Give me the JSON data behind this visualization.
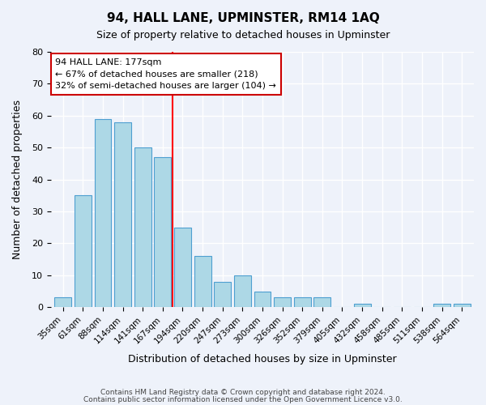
{
  "title": "94, HALL LANE, UPMINSTER, RM14 1AQ",
  "subtitle": "Size of property relative to detached houses in Upminster",
  "xlabel": "Distribution of detached houses by size in Upminster",
  "ylabel": "Number of detached properties",
  "bar_labels": [
    "35sqm",
    "61sqm",
    "88sqm",
    "114sqm",
    "141sqm",
    "167sqm",
    "194sqm",
    "220sqm",
    "247sqm",
    "273sqm",
    "300sqm",
    "326sqm",
    "352sqm",
    "379sqm",
    "405sqm",
    "432sqm",
    "458sqm",
    "485sqm",
    "511sqm",
    "538sqm",
    "564sqm"
  ],
  "bar_values": [
    3,
    35,
    59,
    58,
    50,
    47,
    25,
    16,
    8,
    10,
    5,
    3,
    3,
    3,
    0,
    1,
    0,
    0,
    0,
    1,
    1
  ],
  "bar_color": "#add8e6",
  "bar_edge_color": "#4e9fd1",
  "vline_x": 5.5,
  "vline_color": "red",
  "ylim": [
    0,
    80
  ],
  "yticks": [
    0,
    10,
    20,
    30,
    40,
    50,
    60,
    70,
    80
  ],
  "annotation_title": "94 HALL LANE: 177sqm",
  "annotation_line1": "← 67% of detached houses are smaller (218)",
  "annotation_line2": "32% of semi-detached houses are larger (104) →",
  "annotation_box_color": "#ffffff",
  "annotation_box_edge_color": "#cc0000",
  "footer_line1": "Contains HM Land Registry data © Crown copyright and database right 2024.",
  "footer_line2": "Contains public sector information licensed under the Open Government Licence v3.0.",
  "bg_color": "#eef2fa",
  "grid_color": "#ffffff"
}
